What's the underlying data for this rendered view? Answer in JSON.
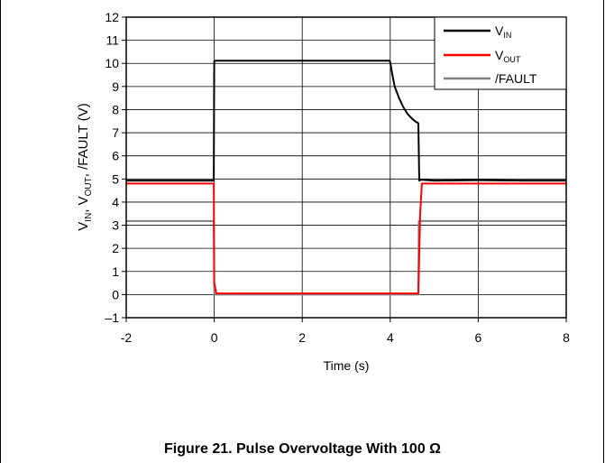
{
  "chart_data": {
    "type": "line",
    "title": "",
    "xlabel": "Time (s)",
    "ylabel": {
      "base": "V",
      "sub1": "IN",
      "mid": ", V",
      "sub2": "OUT",
      "tail": ", /FAULT (V)"
    },
    "xlim": [
      -2,
      8
    ],
    "ylim": [
      -1,
      12
    ],
    "xticks": [
      "-2",
      "0",
      "2",
      "4",
      "6",
      "8"
    ],
    "yticks": [
      "–1",
      "0",
      "1",
      "2",
      "3",
      "4",
      "5",
      "6",
      "7",
      "8",
      "9",
      "10",
      "11",
      "12"
    ],
    "grid": true,
    "legend_position": "top-right",
    "series": [
      {
        "name": "V",
        "name_sub": "IN",
        "color": "#000000",
        "x": [
          -2,
          -0.01,
          0.0,
          0.05,
          1.0,
          2.0,
          3.0,
          3.98,
          4.0,
          4.05,
          4.1,
          4.2,
          4.3,
          4.4,
          4.5,
          4.6,
          4.62,
          4.64,
          4.66,
          4.7,
          5.0,
          6.0,
          7.0,
          8.0
        ],
        "y": [
          4.93,
          4.93,
          10.1,
          10.12,
          10.12,
          10.12,
          10.12,
          10.12,
          10.05,
          9.5,
          9.0,
          8.5,
          8.1,
          7.8,
          7.6,
          7.45,
          7.45,
          7.4,
          4.93,
          4.97,
          4.93,
          4.95,
          4.93,
          4.93
        ]
      },
      {
        "name": "V",
        "name_sub": "OUT",
        "color": "#ff0000",
        "x": [
          -2,
          -0.01,
          0.0,
          0.05,
          2.0,
          4.0,
          4.6,
          4.64,
          4.68,
          4.72,
          5.0,
          6.0,
          7.0,
          8.0
        ],
        "y": [
          4.8,
          4.8,
          0.5,
          0.05,
          0.05,
          0.05,
          0.05,
          0.05,
          3.5,
          4.8,
          4.8,
          4.8,
          4.8,
          4.8
        ]
      },
      {
        "name": "/FAULT",
        "color": "#808080",
        "x": [
          -2,
          -0.01,
          0.0,
          0.05,
          2.0,
          4.0,
          4.6,
          4.64,
          4.65,
          5.0,
          6.0,
          7.0,
          8.0
        ],
        "y": [
          3.18,
          3.18,
          0.0,
          0.0,
          0.0,
          0.0,
          0.0,
          0.0,
          3.18,
          3.18,
          3.18,
          3.18,
          3.18
        ]
      }
    ]
  },
  "caption": "Figure 21. Pulse Overvoltage With 100 Ω"
}
